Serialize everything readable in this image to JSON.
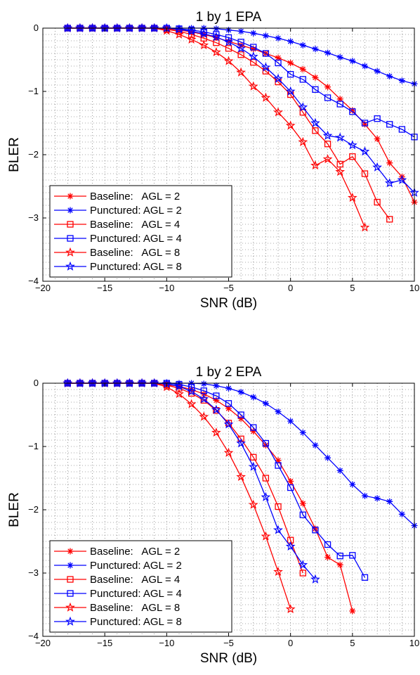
{
  "chart_data": [
    {
      "type": "line",
      "title": "1 by 1 EPA",
      "xlabel": "SNR (dB)",
      "ylabel": "BLER",
      "xlim": [
        -20,
        10
      ],
      "ylim": [
        -4,
        0
      ],
      "xticks": [
        -20,
        -15,
        -10,
        -5,
        0,
        5,
        10
      ],
      "yticks": [
        0,
        -1,
        -2,
        -3,
        -4
      ],
      "xtick_labels": [
        "−20",
        "−15",
        "−10",
        "−5",
        "0",
        "5",
        "10"
      ],
      "ytick_labels": [
        "0",
        "−1",
        "−2",
        "−3",
        "−4"
      ],
      "grid": true,
      "legend_position": "bottom-left",
      "series": [
        {
          "name": "Baseline:   AGL = 2",
          "color": "#ff0000",
          "marker": "asterisk",
          "x": [
            -18,
            -17,
            -16,
            -15,
            -14,
            -13,
            -12,
            -11,
            -10,
            -9,
            -8,
            -7,
            -6,
            -5,
            -4,
            -3,
            -2,
            -1,
            0,
            1,
            2,
            3,
            4,
            5,
            6,
            7,
            8,
            9,
            10
          ],
          "y": [
            0,
            0,
            0,
            0,
            0,
            0,
            0,
            0,
            -0.01,
            -0.03,
            -0.06,
            -0.1,
            -0.15,
            -0.21,
            -0.27,
            -0.33,
            -0.4,
            -0.47,
            -0.55,
            -0.65,
            -0.78,
            -0.93,
            -1.12,
            -1.3,
            -1.52,
            -1.75,
            -2.13,
            -2.35,
            -2.75
          ]
        },
        {
          "name": "Punctured: AGL = 2",
          "color": "#0000ff",
          "marker": "asterisk",
          "x": [
            -18,
            -17,
            -16,
            -15,
            -14,
            -13,
            -12,
            -11,
            -10,
            -9,
            -8,
            -7,
            -6,
            -5,
            -4,
            -3,
            -2,
            -1,
            0,
            1,
            2,
            3,
            4,
            5,
            6,
            7,
            8,
            9,
            10
          ],
          "y": [
            0,
            0,
            0,
            0,
            0,
            0,
            0,
            0,
            0,
            0,
            0,
            0,
            -0.01,
            -0.03,
            -0.05,
            -0.08,
            -0.12,
            -0.16,
            -0.21,
            -0.27,
            -0.33,
            -0.39,
            -0.46,
            -0.52,
            -0.6,
            -0.68,
            -0.76,
            -0.83,
            -0.88
          ]
        },
        {
          "name": "Baseline:   AGL = 4",
          "color": "#ff0000",
          "marker": "square",
          "x": [
            -18,
            -17,
            -16,
            -15,
            -14,
            -13,
            -12,
            -11,
            -10,
            -9,
            -8,
            -7,
            -6,
            -5,
            -4,
            -3,
            -2,
            -1,
            0,
            1,
            2,
            3,
            4,
            5,
            6,
            7,
            8
          ],
          "y": [
            0,
            0,
            0,
            0,
            0,
            0,
            0,
            0,
            -0.02,
            -0.05,
            -0.1,
            -0.16,
            -0.23,
            -0.32,
            -0.42,
            -0.54,
            -0.68,
            -0.85,
            -1.05,
            -1.33,
            -1.62,
            -1.83,
            -2.15,
            -2.03,
            -2.3,
            -2.75,
            -3.02
          ]
        },
        {
          "name": "Punctured: AGL = 4",
          "color": "#0000ff",
          "marker": "square",
          "x": [
            -18,
            -17,
            -16,
            -15,
            -14,
            -13,
            -12,
            -11,
            -10,
            -9,
            -8,
            -7,
            -6,
            -5,
            -4,
            -3,
            -2,
            -1,
            0,
            1,
            2,
            3,
            4,
            5,
            6,
            7,
            8,
            9,
            10
          ],
          "y": [
            0,
            0,
            0,
            0,
            0,
            0,
            0,
            0,
            0,
            -0.01,
            -0.03,
            -0.06,
            -0.1,
            -0.15,
            -0.22,
            -0.3,
            -0.4,
            -0.55,
            -0.73,
            -0.81,
            -0.97,
            -1.1,
            -1.2,
            -1.32,
            -1.5,
            -1.43,
            -1.52,
            -1.6,
            -1.72
          ]
        },
        {
          "name": "Baseline:   AGL = 8",
          "color": "#ff0000",
          "marker": "star",
          "x": [
            -18,
            -17,
            -16,
            -15,
            -14,
            -13,
            -12,
            -11,
            -10,
            -9,
            -8,
            -7,
            -6,
            -5,
            -4,
            -3,
            -2,
            -1,
            0,
            1,
            2,
            3,
            4,
            5,
            6
          ],
          "y": [
            0,
            0,
            0,
            0,
            0,
            0,
            0,
            0,
            -0.04,
            -0.1,
            -0.18,
            -0.27,
            -0.38,
            -0.52,
            -0.7,
            -0.92,
            -1.1,
            -1.33,
            -1.54,
            -1.8,
            -2.17,
            -2.07,
            -2.27,
            -2.68,
            -3.15
          ]
        },
        {
          "name": "Punctured: AGL = 8",
          "color": "#0000ff",
          "marker": "star",
          "x": [
            -18,
            -17,
            -16,
            -15,
            -14,
            -13,
            -12,
            -11,
            -10,
            -9,
            -8,
            -7,
            -6,
            -5,
            -4,
            -3,
            -2,
            -1,
            0,
            1,
            2,
            3,
            4,
            5,
            6,
            7,
            8,
            9,
            10
          ],
          "y": [
            0,
            0,
            0,
            0,
            0,
            0,
            0,
            0,
            0,
            -0.02,
            -0.05,
            -0.09,
            -0.14,
            -0.22,
            -0.32,
            -0.45,
            -0.62,
            -0.8,
            -1.0,
            -1.25,
            -1.5,
            -1.7,
            -1.73,
            -1.85,
            -1.95,
            -2.2,
            -2.45,
            -2.4,
            -2.6
          ]
        }
      ]
    },
    {
      "type": "line",
      "title": "1 by 2 EPA",
      "xlabel": "SNR (dB)",
      "ylabel": "BLER",
      "xlim": [
        -20,
        10
      ],
      "ylim": [
        -4,
        0
      ],
      "xticks": [
        -20,
        -15,
        -10,
        -5,
        0,
        5,
        10
      ],
      "yticks": [
        0,
        -1,
        -2,
        -3,
        -4
      ],
      "xtick_labels": [
        "−20",
        "−15",
        "−10",
        "−5",
        "0",
        "5",
        "10"
      ],
      "ytick_labels": [
        "0",
        "−1",
        "−2",
        "−3",
        "−4"
      ],
      "grid": true,
      "legend_position": "bottom-left",
      "series": [
        {
          "name": "Baseline:   AGL = 2",
          "color": "#ff0000",
          "marker": "asterisk",
          "x": [
            -18,
            -17,
            -16,
            -15,
            -14,
            -13,
            -12,
            -11,
            -10,
            -9,
            -8,
            -7,
            -6,
            -5,
            -4,
            -3,
            -2,
            -1,
            0,
            1,
            2,
            3,
            4,
            5
          ],
          "y": [
            0,
            0,
            0,
            0,
            0,
            0,
            0,
            0,
            -0.02,
            -0.05,
            -0.1,
            -0.17,
            -0.27,
            -0.4,
            -0.56,
            -0.76,
            -0.98,
            -1.22,
            -1.55,
            -1.9,
            -2.3,
            -2.75,
            -2.87,
            -3.6
          ]
        },
        {
          "name": "Punctured: AGL = 2",
          "color": "#0000ff",
          "marker": "asterisk",
          "x": [
            -18,
            -17,
            -16,
            -15,
            -14,
            -13,
            -12,
            -11,
            -10,
            -9,
            -8,
            -7,
            -6,
            -5,
            -4,
            -3,
            -2,
            -1,
            0,
            1,
            2,
            3,
            4,
            5,
            6,
            7,
            8,
            9,
            10
          ],
          "y": [
            0,
            0,
            0,
            0,
            0,
            0,
            0,
            0,
            0,
            0,
            0,
            -0.01,
            -0.04,
            -0.08,
            -0.14,
            -0.22,
            -0.32,
            -0.45,
            -0.6,
            -0.78,
            -0.98,
            -1.18,
            -1.38,
            -1.6,
            -1.78,
            -1.82,
            -1.87,
            -2.07,
            -2.25
          ]
        },
        {
          "name": "Baseline:   AGL = 4",
          "color": "#ff0000",
          "marker": "square",
          "x": [
            -18,
            -17,
            -16,
            -15,
            -14,
            -13,
            -12,
            -11,
            -10,
            -9,
            -8,
            -7,
            -6,
            -5,
            -4,
            -3,
            -2,
            -1,
            0,
            1
          ],
          "y": [
            0,
            0,
            0,
            0,
            0,
            0,
            0,
            0,
            -0.03,
            -0.08,
            -0.16,
            -0.27,
            -0.43,
            -0.63,
            -0.88,
            -1.17,
            -1.5,
            -1.95,
            -2.48,
            -3.0
          ]
        },
        {
          "name": "Punctured: AGL = 4",
          "color": "#0000ff",
          "marker": "square",
          "x": [
            -18,
            -17,
            -16,
            -15,
            -14,
            -13,
            -12,
            -11,
            -10,
            -9,
            -8,
            -7,
            -6,
            -5,
            -4,
            -3,
            -2,
            -1,
            0,
            1,
            2,
            3,
            4,
            5,
            6
          ],
          "y": [
            0,
            0,
            0,
            0,
            0,
            0,
            0,
            0,
            0,
            -0.02,
            -0.06,
            -0.12,
            -0.2,
            -0.32,
            -0.5,
            -0.7,
            -0.95,
            -1.3,
            -1.65,
            -2.08,
            -2.32,
            -2.55,
            -2.73,
            -2.72,
            -3.07
          ]
        },
        {
          "name": "Baseline:   AGL = 8",
          "color": "#ff0000",
          "marker": "star",
          "x": [
            -18,
            -17,
            -16,
            -15,
            -14,
            -13,
            -12,
            -11,
            -10,
            -9,
            -8,
            -7,
            -6,
            -5,
            -4,
            -3,
            -2,
            -1,
            0
          ],
          "y": [
            0,
            0,
            0,
            0,
            0,
            0,
            0,
            0,
            -0.06,
            -0.17,
            -0.33,
            -0.53,
            -0.78,
            -1.1,
            -1.48,
            -1.92,
            -2.42,
            -2.98,
            -3.57
          ]
        },
        {
          "name": "Punctured: AGL = 8",
          "color": "#0000ff",
          "marker": "star",
          "x": [
            -18,
            -17,
            -16,
            -15,
            -14,
            -13,
            -12,
            -11,
            -10,
            -9,
            -8,
            -7,
            -6,
            -5,
            -4,
            -3,
            -2,
            -1,
            0,
            1,
            2
          ],
          "y": [
            0,
            0,
            0,
            0,
            0,
            0,
            0,
            0,
            -0.01,
            -0.05,
            -0.13,
            -0.25,
            -0.42,
            -0.65,
            -0.95,
            -1.32,
            -1.8,
            -2.32,
            -2.58,
            -2.87,
            -3.1
          ]
        }
      ]
    }
  ]
}
